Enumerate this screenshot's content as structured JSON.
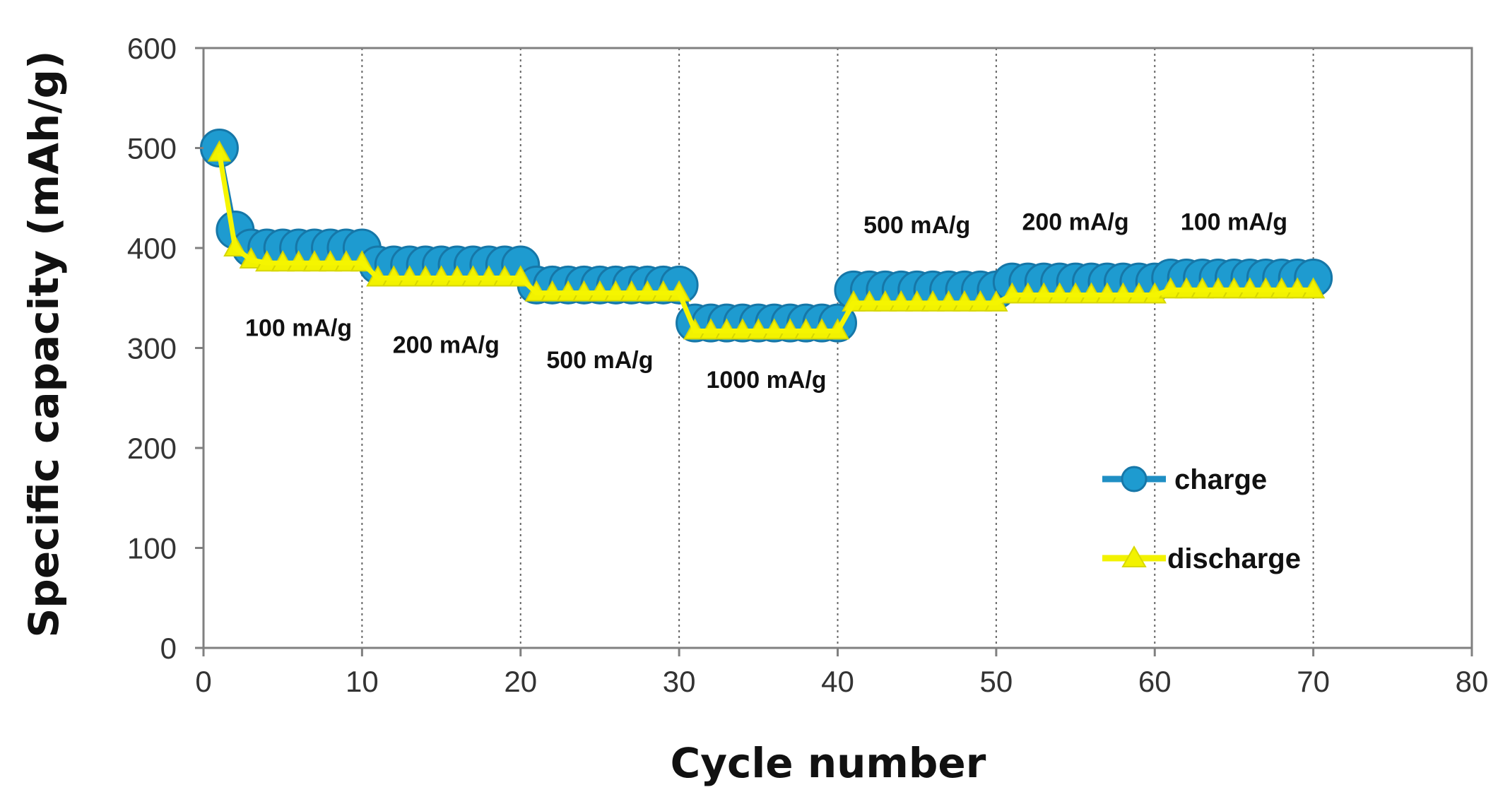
{
  "chart_data": {
    "type": "line",
    "title": "",
    "xlabel": "Cycle number",
    "ylabel": "Specific capacity  (mAh/g)",
    "xlim": [
      0,
      80
    ],
    "ylim": [
      0,
      600
    ],
    "xticks": [
      0,
      10,
      20,
      30,
      40,
      50,
      60,
      70,
      80
    ],
    "yticks": [
      0,
      100,
      200,
      300,
      400,
      500,
      600
    ],
    "x_dotted_gridlines": [
      10,
      20,
      30,
      40,
      50,
      60,
      70
    ],
    "series": [
      {
        "name": "charge",
        "color": "#1f8fc4",
        "marker": "circle",
        "x": [
          1,
          2,
          3,
          4,
          5,
          6,
          7,
          8,
          9,
          10,
          11,
          12,
          13,
          14,
          15,
          16,
          17,
          18,
          19,
          20,
          21,
          22,
          23,
          24,
          25,
          26,
          27,
          28,
          29,
          30,
          31,
          32,
          33,
          34,
          35,
          36,
          37,
          38,
          39,
          40,
          41,
          42,
          43,
          44,
          45,
          46,
          47,
          48,
          49,
          50,
          51,
          52,
          53,
          54,
          55,
          56,
          57,
          58,
          59,
          60,
          61,
          62,
          63,
          64,
          65,
          66,
          67,
          68,
          69,
          70
        ],
        "values": [
          500,
          418,
          400,
          400,
          400,
          400,
          400,
          400,
          400,
          400,
          383,
          383,
          383,
          383,
          383,
          383,
          383,
          383,
          383,
          383,
          363,
          363,
          363,
          363,
          363,
          363,
          363,
          363,
          363,
          363,
          325,
          325,
          325,
          325,
          325,
          325,
          325,
          325,
          325,
          325,
          358,
          358,
          358,
          358,
          358,
          358,
          358,
          358,
          358,
          358,
          366,
          366,
          366,
          366,
          366,
          366,
          366,
          366,
          366,
          366,
          370,
          370,
          370,
          370,
          370,
          370,
          370,
          370,
          370,
          370
        ]
      },
      {
        "name": "discharge",
        "color": "#f2f200",
        "marker": "triangle",
        "x": [
          1,
          2,
          3,
          4,
          5,
          6,
          7,
          8,
          9,
          10,
          11,
          12,
          13,
          14,
          15,
          16,
          17,
          18,
          19,
          20,
          21,
          22,
          23,
          24,
          25,
          26,
          27,
          28,
          29,
          30,
          31,
          32,
          33,
          34,
          35,
          36,
          37,
          38,
          39,
          40,
          41,
          42,
          43,
          44,
          45,
          46,
          47,
          48,
          49,
          50,
          51,
          52,
          53,
          54,
          55,
          56,
          57,
          58,
          59,
          60,
          61,
          62,
          63,
          64,
          65,
          66,
          67,
          68,
          69,
          70
        ],
        "values": [
          495,
          400,
          388,
          385,
          385,
          385,
          385,
          385,
          385,
          385,
          370,
          370,
          370,
          370,
          370,
          370,
          370,
          370,
          370,
          370,
          355,
          355,
          355,
          355,
          355,
          355,
          355,
          355,
          355,
          355,
          317,
          317,
          317,
          317,
          317,
          317,
          317,
          317,
          317,
          317,
          345,
          345,
          345,
          345,
          345,
          345,
          345,
          345,
          345,
          345,
          353,
          353,
          353,
          353,
          353,
          353,
          353,
          353,
          353,
          353,
          358,
          358,
          358,
          358,
          358,
          358,
          358,
          358,
          358,
          358
        ]
      }
    ],
    "annotations": [
      {
        "text": "100 mA/g",
        "x": 6,
        "y": 312
      },
      {
        "text": "200 mA/g",
        "x": 15.3,
        "y": 295
      },
      {
        "text": "500 mA/g",
        "x": 25,
        "y": 280
      },
      {
        "text": "1000 mA/g",
        "x": 35.5,
        "y": 260
      },
      {
        "text": "500 mA/g",
        "x": 45,
        "y": 415
      },
      {
        "text": "200 mA/g",
        "x": 55,
        "y": 418
      },
      {
        "text": "100 mA/g",
        "x": 65,
        "y": 418
      }
    ],
    "legend": {
      "position": "lower-right",
      "entries": [
        "charge",
        "discharge"
      ]
    }
  }
}
